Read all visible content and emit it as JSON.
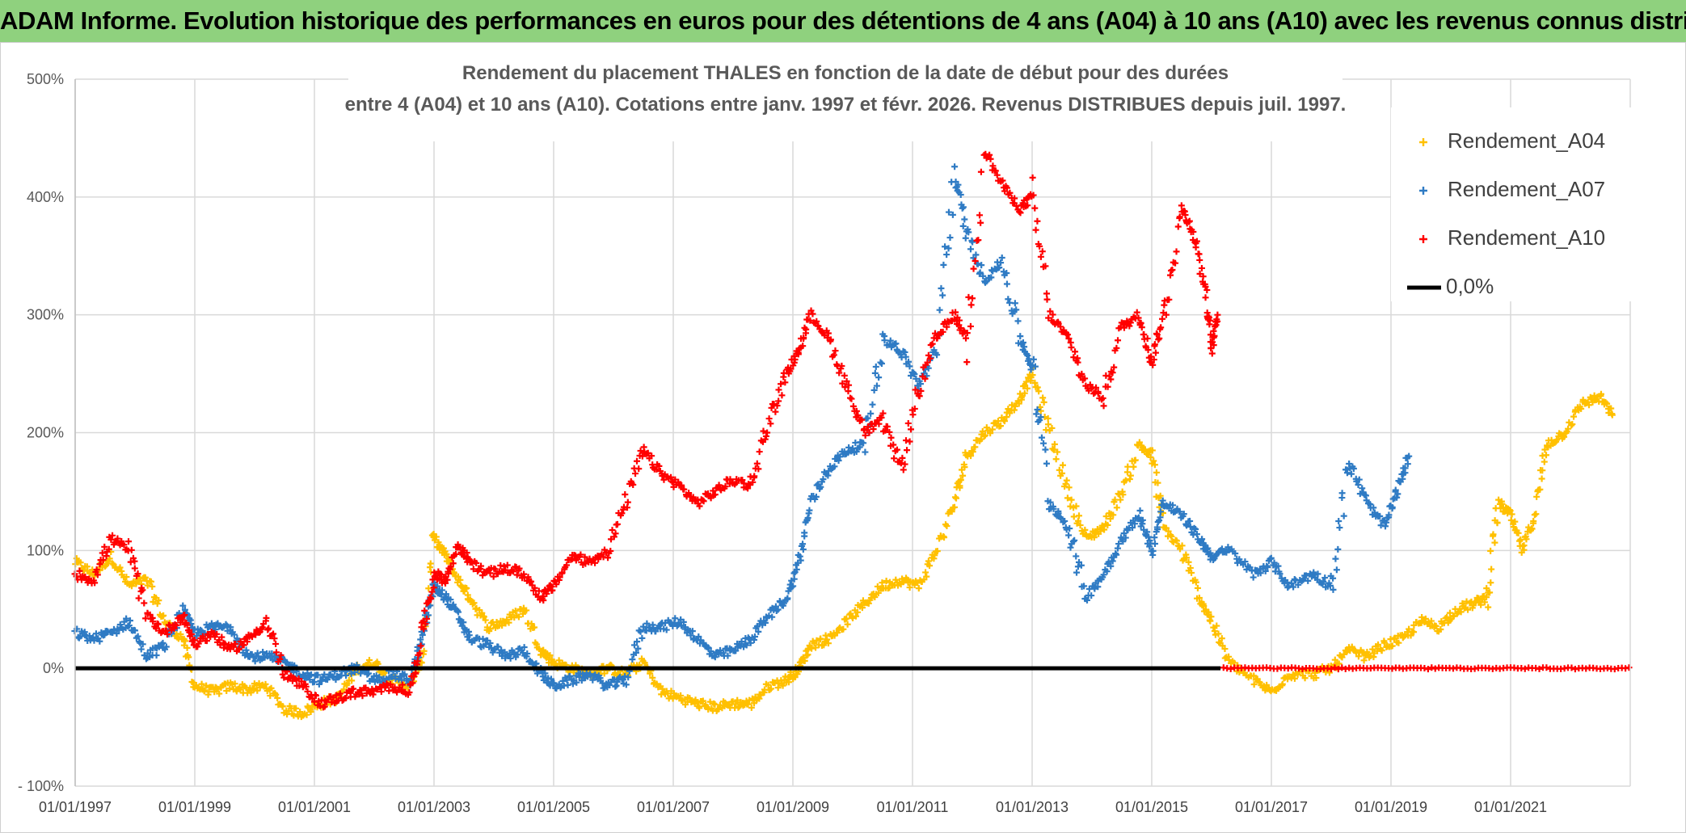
{
  "banner": {
    "title": "ADAM Informe. Evolution historique des performances en euros pour des détentions de 4 ans (A04) à 10 ans (A10) avec les revenus connus distribués"
  },
  "colors": {
    "banner_bg": "#8fd17e",
    "a04": "#ffc000",
    "a07": "#2f7bc4",
    "a10": "#ff0000",
    "zero_line": "#000000",
    "grid": "#d9d9d9"
  },
  "chart_data": {
    "type": "scatter",
    "title_line1": "Rendement du placement THALES en fonction de la date de début pour des durées",
    "title_line2": "entre 4 (A04) et 10 ans (A10). Cotations entre janv. 1997 et févr. 2026. Revenus DISTRIBUES depuis juil. 1997.",
    "xlabel": "",
    "ylabel": "",
    "x_range": [
      1997.0,
      2023.0
    ],
    "ylim": [
      -100,
      500
    ],
    "y_ticks": [
      -100,
      0,
      100,
      200,
      300,
      400,
      500
    ],
    "y_tick_labels": [
      "- 100%",
      "0%",
      "100%",
      "200%",
      "300%",
      "400%",
      "500%"
    ],
    "x_ticks": [
      1997,
      1999,
      2001,
      2003,
      2005,
      2007,
      2009,
      2011,
      2013,
      2015,
      2017,
      2019,
      2021
    ],
    "x_tick_labels": [
      "01/01/1997",
      "01/01/1999",
      "01/01/2001",
      "01/01/2003",
      "01/01/2005",
      "01/01/2007",
      "01/01/2009",
      "01/01/2011",
      "01/01/2013",
      "01/01/2015",
      "01/01/2017",
      "01/01/2019",
      "01/01/2021"
    ],
    "legend_position": "top-right",
    "legend": [
      "Rendement_A04",
      "Rendement_A07",
      "Rendement_A10",
      "0,0%"
    ],
    "series": [
      {
        "name": "Rendement_A04",
        "marker": "+",
        "points": [
          [
            1997.0,
            90
          ],
          [
            1997.3,
            80
          ],
          [
            1997.6,
            95
          ],
          [
            1997.9,
            70
          ],
          [
            1998.2,
            75
          ],
          [
            1998.5,
            40
          ],
          [
            1998.8,
            25
          ],
          [
            1999.0,
            -15
          ],
          [
            1999.3,
            -20
          ],
          [
            1999.6,
            -15
          ],
          [
            1999.9,
            -18
          ],
          [
            2000.2,
            -15
          ],
          [
            2000.5,
            -35
          ],
          [
            2000.8,
            -38
          ],
          [
            2001.1,
            -30
          ],
          [
            2001.4,
            -25
          ],
          [
            2001.7,
            0
          ],
          [
            2002.0,
            5
          ],
          [
            2002.3,
            -10
          ],
          [
            2002.6,
            -15
          ],
          [
            2002.8,
            10
          ],
          [
            2003.0,
            110
          ],
          [
            2003.2,
            95
          ],
          [
            2003.4,
            75
          ],
          [
            2003.6,
            60
          ],
          [
            2003.9,
            35
          ],
          [
            2004.2,
            40
          ],
          [
            2004.5,
            50
          ],
          [
            2004.8,
            15
          ],
          [
            2005.0,
            5
          ],
          [
            2005.3,
            0
          ],
          [
            2005.6,
            -5
          ],
          [
            2005.9,
            0
          ],
          [
            2006.2,
            -5
          ],
          [
            2006.5,
            5
          ],
          [
            2006.8,
            -20
          ],
          [
            2007.1,
            -25
          ],
          [
            2007.4,
            -30
          ],
          [
            2007.7,
            -33
          ],
          [
            2008.0,
            -30
          ],
          [
            2008.3,
            -30
          ],
          [
            2008.6,
            -15
          ],
          [
            2008.9,
            -10
          ],
          [
            2009.1,
            0
          ],
          [
            2009.3,
            20
          ],
          [
            2009.6,
            25
          ],
          [
            2009.9,
            40
          ],
          [
            2010.2,
            55
          ],
          [
            2010.5,
            70
          ],
          [
            2010.8,
            75
          ],
          [
            2011.1,
            70
          ],
          [
            2011.4,
            100
          ],
          [
            2011.7,
            140
          ],
          [
            2011.9,
            180
          ],
          [
            2012.2,
            200
          ],
          [
            2012.5,
            210
          ],
          [
            2012.8,
            230
          ],
          [
            2013.0,
            250
          ],
          [
            2013.3,
            200
          ],
          [
            2013.6,
            150
          ],
          [
            2013.9,
            110
          ],
          [
            2014.2,
            120
          ],
          [
            2014.5,
            150
          ],
          [
            2014.8,
            190
          ],
          [
            2015.0,
            180
          ],
          [
            2015.2,
            120
          ],
          [
            2015.5,
            100
          ],
          [
            2015.8,
            60
          ],
          [
            2016.0,
            40
          ],
          [
            2016.3,
            5
          ],
          [
            2016.7,
            -10
          ],
          [
            2017.0,
            -20
          ],
          [
            2017.3,
            -5
          ],
          [
            2017.7,
            -5
          ],
          [
            2018.0,
            0
          ],
          [
            2018.3,
            15
          ],
          [
            2018.6,
            10
          ],
          [
            2018.9,
            20
          ],
          [
            2019.2,
            25
          ],
          [
            2019.5,
            40
          ],
          [
            2019.8,
            35
          ],
          [
            2020.1,
            50
          ],
          [
            2020.4,
            55
          ],
          [
            2020.6,
            60
          ],
          [
            2020.8,
            140
          ],
          [
            2021.0,
            130
          ],
          [
            2021.2,
            100
          ],
          [
            2021.4,
            130
          ],
          [
            2021.6,
            190
          ],
          [
            2021.9,
            200
          ],
          [
            2022.2,
            225
          ],
          [
            2022.5,
            230
          ],
          [
            2022.7,
            215
          ]
        ]
      },
      {
        "name": "Rendement_A07",
        "marker": "+",
        "points": [
          [
            1997.0,
            30
          ],
          [
            1997.3,
            25
          ],
          [
            1997.6,
            30
          ],
          [
            1997.9,
            40
          ],
          [
            1998.2,
            10
          ],
          [
            1998.5,
            20
          ],
          [
            1998.8,
            50
          ],
          [
            1999.0,
            30
          ],
          [
            1999.3,
            35
          ],
          [
            1999.6,
            35
          ],
          [
            1999.9,
            10
          ],
          [
            2000.2,
            10
          ],
          [
            2000.5,
            5
          ],
          [
            2000.8,
            -5
          ],
          [
            2001.1,
            -10
          ],
          [
            2001.4,
            -5
          ],
          [
            2001.7,
            0
          ],
          [
            2002.0,
            -10
          ],
          [
            2002.3,
            -5
          ],
          [
            2002.6,
            -10
          ],
          [
            2002.8,
            25
          ],
          [
            2003.0,
            70
          ],
          [
            2003.2,
            60
          ],
          [
            2003.4,
            45
          ],
          [
            2003.6,
            25
          ],
          [
            2003.9,
            20
          ],
          [
            2004.2,
            10
          ],
          [
            2004.5,
            15
          ],
          [
            2004.8,
            -5
          ],
          [
            2005.0,
            -15
          ],
          [
            2005.3,
            -10
          ],
          [
            2005.6,
            -5
          ],
          [
            2005.9,
            -15
          ],
          [
            2006.2,
            -10
          ],
          [
            2006.5,
            35
          ],
          [
            2006.8,
            35
          ],
          [
            2007.1,
            40
          ],
          [
            2007.4,
            25
          ],
          [
            2007.7,
            10
          ],
          [
            2008.0,
            15
          ],
          [
            2008.3,
            25
          ],
          [
            2008.6,
            45
          ],
          [
            2008.9,
            60
          ],
          [
            2009.1,
            90
          ],
          [
            2009.3,
            140
          ],
          [
            2009.6,
            170
          ],
          [
            2009.9,
            185
          ],
          [
            2010.2,
            190
          ],
          [
            2010.5,
            280
          ],
          [
            2010.8,
            270
          ],
          [
            2011.1,
            240
          ],
          [
            2011.4,
            270
          ],
          [
            2011.7,
            420
          ],
          [
            2011.9,
            370
          ],
          [
            2012.2,
            330
          ],
          [
            2012.5,
            345
          ],
          [
            2012.8,
            280
          ],
          [
            2013.0,
            255
          ],
          [
            2013.3,
            140
          ],
          [
            2013.6,
            120
          ],
          [
            2013.9,
            60
          ],
          [
            2014.2,
            80
          ],
          [
            2014.5,
            110
          ],
          [
            2014.8,
            130
          ],
          [
            2015.0,
            100
          ],
          [
            2015.2,
            140
          ],
          [
            2015.5,
            130
          ],
          [
            2015.8,
            110
          ],
          [
            2016.0,
            95
          ],
          [
            2016.3,
            100
          ],
          [
            2016.7,
            80
          ],
          [
            2017.0,
            90
          ],
          [
            2017.3,
            70
          ],
          [
            2017.7,
            80
          ],
          [
            2018.0,
            70
          ],
          [
            2018.3,
            175
          ],
          [
            2018.6,
            140
          ],
          [
            2018.9,
            120
          ],
          [
            2019.1,
            150
          ],
          [
            2019.3,
            180
          ]
        ]
      },
      {
        "name": "Rendement_A10",
        "marker": "+",
        "points": [
          [
            1997.0,
            80
          ],
          [
            1997.3,
            75
          ],
          [
            1997.6,
            110
          ],
          [
            1997.9,
            100
          ],
          [
            1998.2,
            45
          ],
          [
            1998.5,
            30
          ],
          [
            1998.8,
            45
          ],
          [
            1999.0,
            20
          ],
          [
            1999.3,
            30
          ],
          [
            1999.6,
            15
          ],
          [
            1999.9,
            25
          ],
          [
            2000.2,
            40
          ],
          [
            2000.5,
            -5
          ],
          [
            2000.8,
            -15
          ],
          [
            2001.1,
            -30
          ],
          [
            2001.4,
            -25
          ],
          [
            2001.7,
            -20
          ],
          [
            2002.0,
            -20
          ],
          [
            2002.3,
            -15
          ],
          [
            2002.6,
            -20
          ],
          [
            2002.8,
            30
          ],
          [
            2003.0,
            80
          ],
          [
            2003.2,
            75
          ],
          [
            2003.4,
            105
          ],
          [
            2003.6,
            90
          ],
          [
            2003.9,
            80
          ],
          [
            2004.2,
            85
          ],
          [
            2004.5,
            80
          ],
          [
            2004.8,
            60
          ],
          [
            2005.0,
            70
          ],
          [
            2005.3,
            95
          ],
          [
            2005.6,
            90
          ],
          [
            2005.9,
            100
          ],
          [
            2006.2,
            140
          ],
          [
            2006.5,
            185
          ],
          [
            2006.8,
            165
          ],
          [
            2007.1,
            155
          ],
          [
            2007.4,
            140
          ],
          [
            2007.7,
            150
          ],
          [
            2008.0,
            160
          ],
          [
            2008.3,
            155
          ],
          [
            2008.6,
            210
          ],
          [
            2008.9,
            250
          ],
          [
            2009.1,
            270
          ],
          [
            2009.3,
            300
          ],
          [
            2009.6,
            280
          ],
          [
            2009.9,
            240
          ],
          [
            2010.2,
            200
          ],
          [
            2010.5,
            210
          ],
          [
            2010.8,
            170
          ],
          [
            2011.1,
            235
          ],
          [
            2011.4,
            280
          ],
          [
            2011.7,
            300
          ],
          [
            2011.9,
            280
          ],
          [
            2012.2,
            440
          ],
          [
            2012.5,
            410
          ],
          [
            2012.8,
            390
          ],
          [
            2013.0,
            400
          ],
          [
            2013.3,
            300
          ],
          [
            2013.6,
            280
          ],
          [
            2013.9,
            240
          ],
          [
            2014.2,
            230
          ],
          [
            2014.5,
            290
          ],
          [
            2014.8,
            300
          ],
          [
            2015.0,
            260
          ],
          [
            2015.2,
            300
          ],
          [
            2015.5,
            390
          ],
          [
            2015.7,
            370
          ],
          [
            2015.9,
            320
          ],
          [
            2016.0,
            270
          ],
          [
            2016.1,
            300
          ]
        ]
      },
      {
        "name": "Rendement_A10 (zero tail)",
        "marker": "+",
        "x_from": 2016.2,
        "x_to": 2023.0,
        "value": 0
      }
    ],
    "reference_line": {
      "name": "0,0%",
      "y": 0
    }
  }
}
